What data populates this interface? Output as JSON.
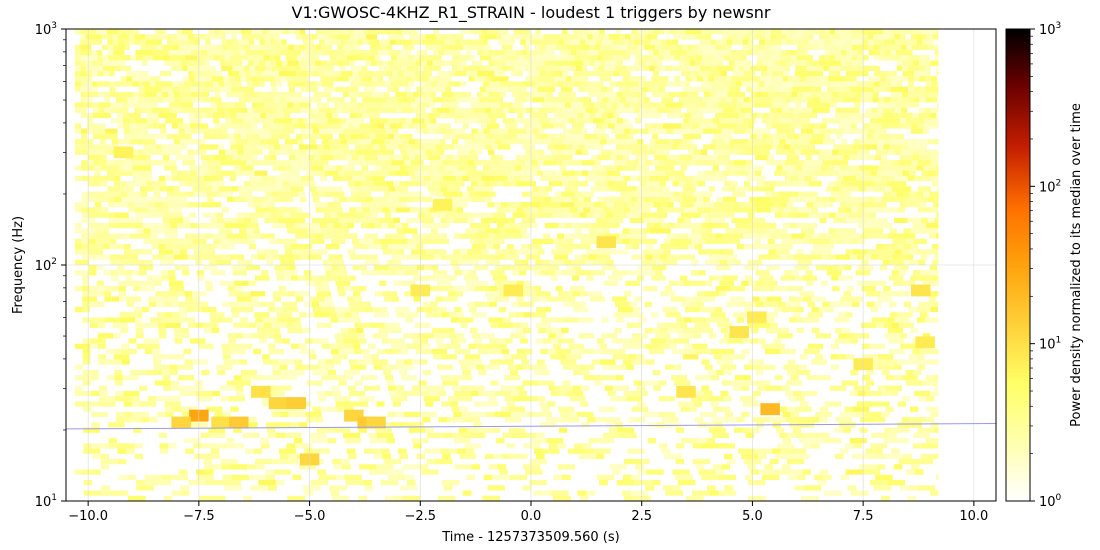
{
  "chart_data": {
    "type": "heatmap",
    "title": "V1:GWOSC-4KHZ_R1_STRAIN - loudest 1 triggers by newsnr",
    "xlabel": "Time - 1257373509.560 (s)",
    "ylabel": "Frequency (Hz)",
    "colorbar_label": "Power density normalized to its median over time",
    "xlim": [
      -10.5,
      10.5
    ],
    "ylim": [
      10,
      1000
    ],
    "yscale": "log",
    "colorbar_scale": "log",
    "clim": [
      1,
      1000
    ],
    "colormap": "afmhot_r",
    "data_extent_time": [
      -10.5,
      9.2
    ],
    "grid": true,
    "x_ticks": [
      -10.0,
      -7.5,
      -5.0,
      -2.5,
      0.0,
      2.5,
      5.0,
      7.5,
      10.0
    ],
    "x_tick_labels": [
      "−10.0",
      "−7.5",
      "−5.0",
      "−2.5",
      "0.0",
      "2.5",
      "5.0",
      "7.5",
      "10.0"
    ],
    "y_ticks": [
      {
        "value": 10,
        "base": "10",
        "exp": "1"
      },
      {
        "value": 100,
        "base": "10",
        "exp": "2"
      },
      {
        "value": 1000,
        "base": "10",
        "exp": "3"
      }
    ],
    "colorbar_ticks": [
      {
        "value": 1,
        "base": "10",
        "exp": "0"
      },
      {
        "value": 10,
        "base": "10",
        "exp": "1"
      },
      {
        "value": 100,
        "base": "10",
        "exp": "2"
      },
      {
        "value": 1000,
        "base": "10",
        "exp": "3"
      }
    ],
    "trigger_track": {
      "time": [
        -10.5,
        10.5
      ],
      "frequency": [
        20.2,
        21.3
      ],
      "color": "#9999ee"
    },
    "hotspots": [
      {
        "t": -7.5,
        "f": 23,
        "level": 30
      },
      {
        "t": -7.9,
        "f": 21.5,
        "level": 12
      },
      {
        "t": -7.0,
        "f": 21.5,
        "level": 10
      },
      {
        "t": -6.6,
        "f": 21.5,
        "level": 15
      },
      {
        "t": -6.1,
        "f": 29,
        "level": 10
      },
      {
        "t": -5.7,
        "f": 26,
        "level": 12
      },
      {
        "t": -5.3,
        "f": 26,
        "level": 14
      },
      {
        "t": -5.0,
        "f": 15,
        "level": 12
      },
      {
        "t": -4.0,
        "f": 23,
        "level": 12
      },
      {
        "t": -3.7,
        "f": 21.5,
        "level": 15
      },
      {
        "t": -3.5,
        "f": 21.5,
        "level": 12
      },
      {
        "t": -2.5,
        "f": 78,
        "level": 8
      },
      {
        "t": -0.4,
        "f": 78,
        "level": 8
      },
      {
        "t": 1.7,
        "f": 125,
        "level": 9
      },
      {
        "t": 3.5,
        "f": 29,
        "level": 9
      },
      {
        "t": 4.7,
        "f": 52,
        "level": 9
      },
      {
        "t": 5.1,
        "f": 60,
        "level": 8
      },
      {
        "t": 5.4,
        "f": 24.5,
        "level": 20
      },
      {
        "t": 7.5,
        "f": 38,
        "level": 8
      },
      {
        "t": 8.8,
        "f": 78,
        "level": 9
      },
      {
        "t": 8.9,
        "f": 47,
        "level": 8
      },
      {
        "t": -9.2,
        "f": 300,
        "level": 7
      },
      {
        "t": -2.0,
        "f": 180,
        "level": 7
      }
    ]
  }
}
